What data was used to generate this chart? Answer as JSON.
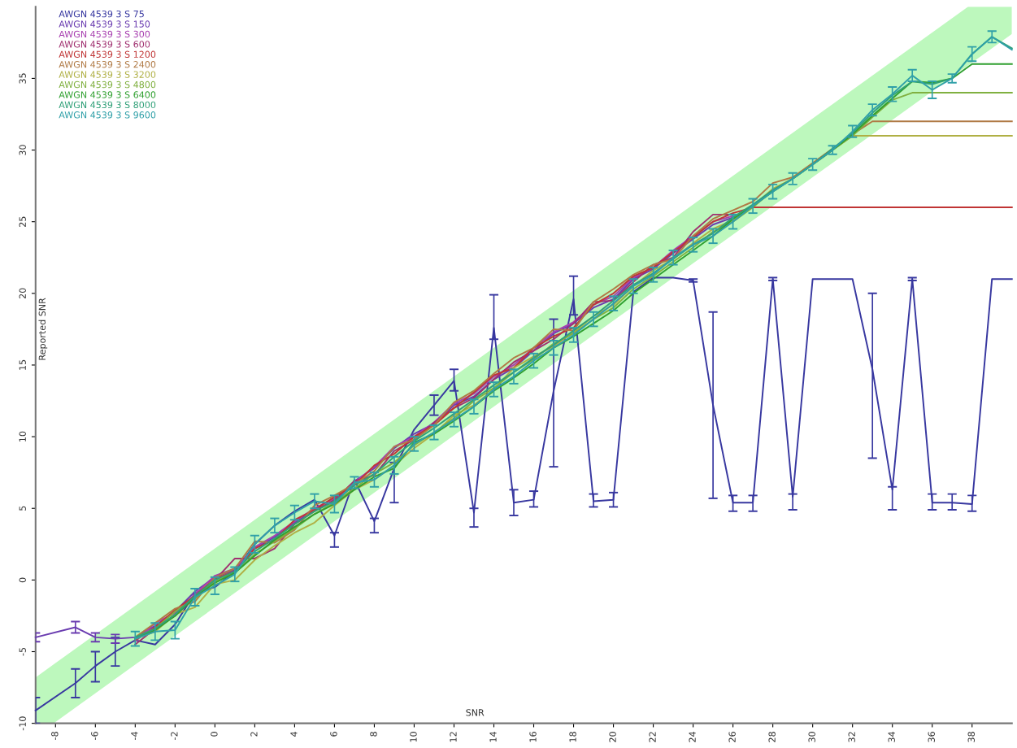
{
  "chart_data": {
    "type": "line",
    "xlabel": "SNR",
    "ylabel": "Reported SNR",
    "xlim": [
      -9,
      40
    ],
    "ylim": [
      -10,
      40
    ],
    "xticks": [
      -8,
      -6,
      -4,
      -2,
      0,
      2,
      4,
      6,
      8,
      10,
      12,
      14,
      16,
      18,
      20,
      22,
      24,
      26,
      28,
      30,
      32,
      34,
      36,
      38
    ],
    "yticks": [
      -10,
      -5,
      0,
      5,
      10,
      15,
      20,
      25,
      30,
      35
    ],
    "legend": "top left",
    "series": [
      {
        "color": "#bdf8bd",
        "x": [
          -9,
          -8.1,
          37.8,
          40
        ],
        "values": [
          null,
          null,
          null,
          null
        ],
        "lower": [
          -10,
          -10,
          35.9,
          38.1
        ],
        "upper": [
          -6.8,
          -5.9,
          40,
          40
        ]
      },
      {
        "name": "AWGN 4539 3 S 75",
        "color": "#3838a0",
        "x": [
          -9,
          -7,
          -6,
          -5,
          -4,
          -3,
          -2,
          -1,
          0,
          1,
          2,
          3,
          4,
          5,
          6,
          7,
          8,
          9,
          10,
          11,
          12,
          13,
          14,
          15,
          16,
          17,
          18,
          19,
          20,
          21,
          22,
          23,
          24,
          25,
          26,
          27,
          28,
          29,
          30,
          31,
          32,
          33,
          34,
          35,
          36,
          37,
          38,
          39,
          40
        ],
        "values": [
          -9.1,
          -7.2,
          -6.0,
          -5.0,
          -4.2,
          -4.5,
          -3.1,
          -0.9,
          -0.5,
          0.6,
          2.5,
          3.8,
          4.8,
          5.6,
          3.1,
          7.0,
          4.1,
          7.8,
          10.5,
          12.2,
          13.9,
          4.7,
          17.6,
          5.4,
          5.6,
          13.2,
          19.6,
          5.5,
          5.6,
          20.1,
          21.1,
          21.1,
          20.9,
          12.2,
          5.4,
          5.4,
          21.0,
          5.8,
          21.0,
          21.0,
          21.0,
          14.7,
          6.3,
          21.0,
          5.4,
          5.4,
          5.3,
          21.0,
          21.0
        ],
        "errors": [
          [
            -10,
            -8.2
          ],
          [
            -8.2,
            -6.2
          ],
          [
            -7.1,
            -5.0
          ],
          [
            -6.0,
            -4.0
          ],
          null,
          null,
          null,
          null,
          null,
          null,
          null,
          null,
          null,
          null,
          [
            2.3,
            3.3
          ],
          null,
          [
            3.3,
            4.3
          ],
          [
            5.4,
            8.2
          ],
          null,
          [
            11.5,
            12.9
          ],
          [
            13.2,
            14.7
          ],
          [
            3.7,
            5.0
          ],
          [
            16.8,
            19.9
          ],
          [
            4.5,
            6.3
          ],
          [
            5.1,
            6.2
          ],
          [
            7.9,
            18.2
          ],
          [
            18.5,
            21.2
          ],
          [
            5.1,
            6.0
          ],
          [
            5.1,
            6.1
          ],
          null,
          null,
          null,
          0.1,
          [
            5.7,
            18.7
          ],
          [
            4.8,
            5.9
          ],
          [
            4.8,
            5.9
          ],
          0.1,
          [
            4.9,
            6.0
          ],
          null,
          null,
          null,
          [
            8.5,
            20.0
          ],
          [
            4.9,
            6.5
          ],
          0.1,
          [
            4.9,
            6.0
          ],
          [
            4.9,
            6.0
          ],
          [
            4.8,
            5.9
          ],
          null,
          null
        ]
      },
      {
        "name": "AWGN 4539 3 S 150",
        "color": "#6a3cb0",
        "x": [
          -9,
          -7,
          -6,
          -5,
          -4,
          -3,
          -2,
          -1,
          0,
          1,
          2,
          3,
          4,
          5,
          6,
          7,
          8,
          9,
          10,
          11,
          12,
          13,
          14,
          15,
          16,
          17,
          18,
          19,
          20,
          21,
          22,
          23,
          24,
          25,
          26
        ],
        "values": [
          -4.0,
          -3.3,
          -4.0,
          -4.1,
          -4.0,
          -3.2,
          -2.2,
          -0.8,
          0.2,
          0.7,
          2.2,
          3.0,
          4.0,
          4.9,
          5.5,
          6.9,
          7.8,
          9.2,
          10.2,
          10.9,
          12.2,
          12.8,
          14.0,
          14.8,
          16.0,
          17.2,
          17.9,
          19.0,
          19.6,
          21.0,
          21.7,
          22.8,
          23.8,
          24.8,
          25.3
        ],
        "errors": [
          0.3,
          0.4,
          0.3,
          0.3,
          null,
          null,
          null,
          null,
          null,
          null,
          null,
          null,
          null,
          null,
          null,
          null,
          null,
          null,
          null,
          null,
          null,
          null,
          null,
          null,
          null,
          null,
          null,
          null,
          null,
          null,
          null,
          null,
          null,
          null,
          null
        ]
      },
      {
        "name": "AWGN 4539 3 S 300",
        "color": "#a840b0",
        "x": [
          -4,
          -3,
          -2,
          -1,
          0,
          1,
          2,
          3,
          4,
          5,
          6,
          7,
          8,
          9,
          10,
          11,
          12,
          13,
          14,
          15,
          16,
          17,
          18,
          19,
          20,
          21,
          22,
          23,
          24,
          25,
          26
        ],
        "values": [
          -4.3,
          -3.0,
          -2.3,
          -1.0,
          0.3,
          0.8,
          2.3,
          3.1,
          4.1,
          5.0,
          5.7,
          6.8,
          7.9,
          9.3,
          10.0,
          11.0,
          12.3,
          13.0,
          14.2,
          15.0,
          16.2,
          17.3,
          18.0,
          19.2,
          19.8,
          21.1,
          21.8,
          23.0,
          24.0,
          25.0,
          25.4
        ]
      },
      {
        "name": "AWGN 4539 3 S 600",
        "color": "#a03070",
        "x": [
          -4,
          -3,
          -2,
          -1,
          0,
          1,
          2,
          3,
          4,
          5,
          6,
          7,
          8,
          9,
          10,
          11,
          12,
          13,
          14,
          15,
          16,
          17,
          18,
          19,
          20,
          21,
          22,
          23,
          24,
          25,
          26
        ],
        "values": [
          -4.5,
          -3.4,
          -2.5,
          -1.2,
          0.0,
          1.5,
          1.5,
          2.2,
          3.9,
          4.8,
          5.6,
          6.9,
          7.3,
          9.0,
          9.8,
          11.0,
          12.0,
          12.7,
          14.0,
          15.2,
          16.0,
          16.8,
          17.9,
          19.4,
          19.5,
          20.8,
          22.0,
          22.5,
          24.3,
          25.5,
          25.5
        ]
      },
      {
        "name": "AWGN 4539 3 S 1200",
        "color": "#c03535",
        "x": [
          -4,
          -3,
          -2,
          -1,
          0,
          1,
          2,
          3,
          4,
          5,
          6,
          7,
          8,
          9,
          10,
          11,
          12,
          13,
          14,
          15,
          16,
          17,
          18,
          19,
          20,
          21,
          22,
          23,
          24,
          25,
          26,
          27,
          28,
          29,
          30,
          31,
          32,
          33,
          34,
          35,
          36,
          37,
          38,
          39,
          40
        ],
        "values": [
          -4.2,
          -3.3,
          -2.1,
          -1.1,
          0.1,
          0.6,
          2.2,
          2.8,
          4.2,
          4.9,
          5.8,
          6.6,
          8.0,
          8.8,
          10.0,
          10.8,
          12.0,
          13.1,
          14.3,
          14.8,
          16.2,
          17.0,
          17.6,
          19.2,
          20.0,
          21.2,
          21.8,
          22.9,
          23.9,
          25.0,
          25.6,
          26.0,
          26.0,
          26.0,
          26.0,
          26.0,
          26.0,
          26.0,
          26.0,
          26.0,
          26.0,
          26.0,
          26.0,
          26.0,
          26.0
        ]
      },
      {
        "name": "AWGN 4539 3 S 2400",
        "color": "#b07a45",
        "x": [
          -4,
          -3,
          -2,
          -1,
          0,
          1,
          2,
          3,
          4,
          5,
          6,
          7,
          8,
          9,
          10,
          11,
          12,
          13,
          14,
          15,
          16,
          17,
          18,
          19,
          20,
          21,
          22,
          23,
          24,
          25,
          26,
          27,
          28,
          29,
          30,
          31,
          32,
          33,
          34,
          35,
          36,
          37,
          38,
          39,
          40
        ],
        "values": [
          -4.0,
          -3.0,
          -2.0,
          -1.5,
          0.2,
          0.8,
          2.7,
          2.6,
          3.5,
          5.2,
          5.9,
          6.7,
          7.6,
          9.3,
          9.8,
          10.8,
          12.4,
          13.2,
          14.4,
          15.5,
          16.2,
          17.5,
          17.4,
          19.4,
          20.3,
          21.3,
          22.0,
          22.4,
          24.0,
          25.2,
          25.8,
          26.4,
          27.7,
          28.1,
          29.1,
          30.1,
          31.1,
          32.0,
          32.0,
          32.0,
          32.0,
          32.0,
          32.0,
          32.0,
          32.0
        ]
      },
      {
        "name": "AWGN 4539 3 S 3200",
        "color": "#b0b045",
        "x": [
          -4,
          -3,
          -2,
          -1,
          0,
          1,
          2,
          3,
          4,
          5,
          6,
          7,
          8,
          9,
          10,
          11,
          12,
          13,
          14,
          15,
          16,
          17,
          18,
          19,
          20,
          21,
          22,
          23,
          24,
          25,
          26,
          27,
          28,
          29,
          30,
          31,
          32,
          33,
          34,
          35,
          36,
          37,
          38,
          39,
          40
        ],
        "values": [
          -4.1,
          -3.6,
          -2.4,
          -1.9,
          -0.3,
          0.0,
          1.4,
          2.4,
          3.3,
          4.0,
          5.2,
          6.3,
          7.0,
          8.0,
          9.2,
          10.2,
          11.5,
          12.2,
          13.3,
          14.8,
          15.6,
          16.3,
          17.3,
          18.4,
          19.2,
          20.5,
          21.6,
          22.4,
          23.5,
          24.5,
          25.1,
          26.1,
          27.3,
          28.0,
          29.0,
          30.0,
          31.0,
          31.0,
          31.0,
          31.0,
          31.0,
          31.0,
          31.0,
          31.0,
          31.0
        ]
      },
      {
        "name": "AWGN 4539 3 S 4800",
        "color": "#80b040",
        "x": [
          -4,
          -3,
          -2,
          -1,
          0,
          1,
          2,
          3,
          4,
          5,
          6,
          7,
          8,
          9,
          10,
          11,
          12,
          13,
          14,
          15,
          16,
          17,
          18,
          19,
          20,
          21,
          22,
          23,
          24,
          25,
          26,
          27,
          28,
          29,
          30,
          31,
          32,
          33,
          34,
          35,
          36,
          37,
          38,
          39,
          40
        ],
        "values": [
          -4.0,
          -3.4,
          -2.2,
          -1.3,
          -0.1,
          0.5,
          1.8,
          2.7,
          3.6,
          4.6,
          5.4,
          6.4,
          7.4,
          8.2,
          9.4,
          10.3,
          11.3,
          12.5,
          13.4,
          14.5,
          15.4,
          16.5,
          17.2,
          18.2,
          19.0,
          20.3,
          21.2,
          22.2,
          23.2,
          24.3,
          25.0,
          26.0,
          27.2,
          28.0,
          29.0,
          30.0,
          31.0,
          32.3,
          33.5,
          34.0,
          34.0,
          34.0,
          34.0,
          34.0,
          34.0
        ]
      },
      {
        "name": "AWGN 4539 3 S 6400",
        "color": "#30a030",
        "x": [
          -4,
          -3,
          -2,
          -1,
          0,
          1,
          2,
          3,
          4,
          5,
          6,
          7,
          8,
          9,
          10,
          11,
          12,
          13,
          14,
          15,
          16,
          17,
          18,
          19,
          20,
          21,
          22,
          23,
          24,
          25,
          26,
          27,
          28,
          29,
          30,
          31,
          32,
          33,
          34,
          35,
          36,
          37,
          38,
          39,
          40
        ],
        "values": [
          -4.1,
          -3.5,
          -2.5,
          -1.2,
          -0.2,
          0.5,
          1.7,
          2.8,
          3.7,
          4.6,
          5.3,
          6.3,
          7.2,
          7.8,
          9.6,
          10.2,
          11.1,
          12.1,
          13.2,
          14.1,
          15.1,
          16.2,
          17.0,
          17.9,
          18.8,
          20.0,
          21.0,
          22.0,
          23.0,
          24.0,
          25.2,
          26.1,
          27.1,
          28.0,
          29.0,
          30.0,
          31.1,
          32.4,
          33.6,
          34.8,
          34.7,
          35.0,
          36.0,
          36.0,
          36.0
        ]
      },
      {
        "name": "AWGN 4539 3 S 8000",
        "color": "#30a078",
        "x": [
          -4,
          -3,
          -2,
          -1,
          0,
          1,
          2,
          3,
          4,
          5,
          6,
          7,
          8,
          9,
          10,
          11,
          12,
          13,
          14,
          15,
          16,
          17,
          18,
          19,
          20,
          21,
          22,
          23,
          24,
          25,
          26,
          27,
          28,
          29,
          30,
          31,
          32,
          33,
          34,
          35,
          36,
          37,
          38,
          39,
          40
        ],
        "values": [
          -4.0,
          -3.4,
          -2.4,
          -1.1,
          0.0,
          0.6,
          2.0,
          2.9,
          3.9,
          4.8,
          5.5,
          6.6,
          7.4,
          8.6,
          9.7,
          10.6,
          11.6,
          12.6,
          13.6,
          14.5,
          15.5,
          16.4,
          17.4,
          18.4,
          19.5,
          20.6,
          21.4,
          22.4,
          23.4,
          24.2,
          25.3,
          26.2,
          27.2,
          28.0,
          29.0,
          30.1,
          31.2,
          32.6,
          33.8,
          34.8,
          34.6,
          35.0,
          36.7,
          37.9,
          37.1
        ]
      },
      {
        "name": "AWGN 4539 3 S 9600",
        "color": "#30a0a8",
        "x": [
          -4,
          -3,
          -2,
          -1,
          0,
          1,
          2,
          3,
          4,
          5,
          6,
          7,
          8,
          9,
          10,
          11,
          12,
          13,
          14,
          15,
          16,
          17,
          18,
          19,
          20,
          21,
          22,
          23,
          24,
          25,
          26,
          27,
          28,
          29,
          30,
          31,
          32,
          33,
          34,
          35,
          36,
          37,
          38,
          39,
          40
        ],
        "values": [
          -4.1,
          -3.6,
          -3.5,
          -1.2,
          -0.4,
          0.4,
          2.5,
          3.8,
          4.7,
          5.5,
          5.3,
          6.8,
          7.0,
          8.0,
          9.5,
          10.3,
          11.2,
          12.1,
          13.3,
          14.2,
          15.3,
          16.2,
          17.1,
          18.2,
          19.3,
          20.5,
          21.3,
          22.5,
          23.4,
          24.0,
          25.0,
          26.1,
          27.1,
          28.0,
          29.0,
          30.0,
          31.3,
          32.8,
          33.9,
          35.2,
          34.2,
          35.0,
          36.7,
          37.9,
          37.0
        ],
        "errors": [
          0.5,
          0.6,
          0.6,
          0.6,
          0.6,
          0.5,
          0.6,
          0.5,
          0.5,
          0.5,
          0.6,
          0.4,
          0.5,
          0.6,
          0.5,
          0.5,
          0.5,
          0.5,
          0.5,
          0.5,
          0.5,
          0.5,
          0.5,
          0.5,
          0.5,
          0.5,
          0.5,
          0.5,
          0.5,
          0.5,
          0.5,
          0.5,
          0.5,
          0.4,
          0.4,
          0.3,
          0.4,
          0.4,
          0.5,
          0.4,
          0.6,
          0.3,
          0.5,
          0.4,
          null
        ]
      }
    ]
  }
}
